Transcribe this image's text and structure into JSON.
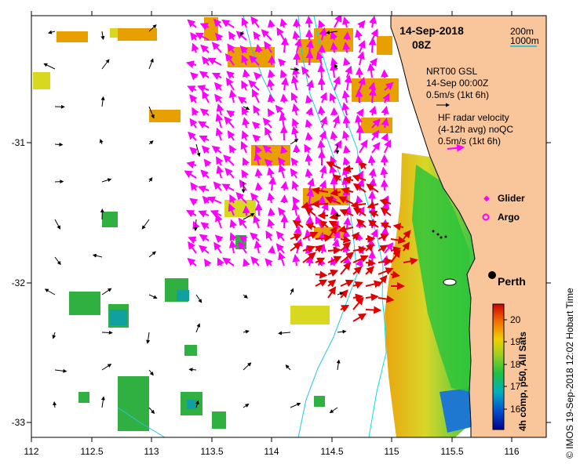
{
  "map": {
    "date_label": "14-Sep-2018",
    "time_label": "08Z",
    "credit": "© IMOS 19-Sep-2018 12:02 Hobart Time",
    "city_label": "Perth",
    "colorbar_title": "4h comp, p50, All Sats",
    "colorbar_ticks": [
      "16",
      "17",
      "18",
      "19",
      "20"
    ],
    "x_ticks": [
      "112",
      "112.5",
      "113",
      "113.5",
      "114",
      "114.5",
      "115",
      "115.5",
      "116"
    ],
    "y_ticks": [
      "-31",
      "-32",
      "-33"
    ],
    "depth_legend": [
      "200m",
      "1000m"
    ]
  },
  "legend": {
    "gsl_title": "NRT00 GSL",
    "gsl_time": "14-Sep 00:00Z",
    "gsl_scale": "0.5m/s (1kt 6h)",
    "hf_title": "HF radar velocity",
    "hf_sub": "(4-12h avg) noQC",
    "hf_scale": "0.5m/s (1kt 6h)",
    "glider_label": "Glider",
    "argo_label": "Argo"
  },
  "colors": {
    "land": "#f9c59a",
    "hf_vectors": "#ff00ff",
    "hf_strong_vectors": "#e00000",
    "gsl_vectors": "#000000",
    "isobath_200": "#00e0e0",
    "isobath_1000": "#22c5e0",
    "sst_warm": "#e8a000",
    "sst_mid": "#30c030",
    "sst_cool": "#0040a0"
  },
  "icons": [
    "glider-marker-icon",
    "argo-marker-icon",
    "perth-marker-icon"
  ]
}
